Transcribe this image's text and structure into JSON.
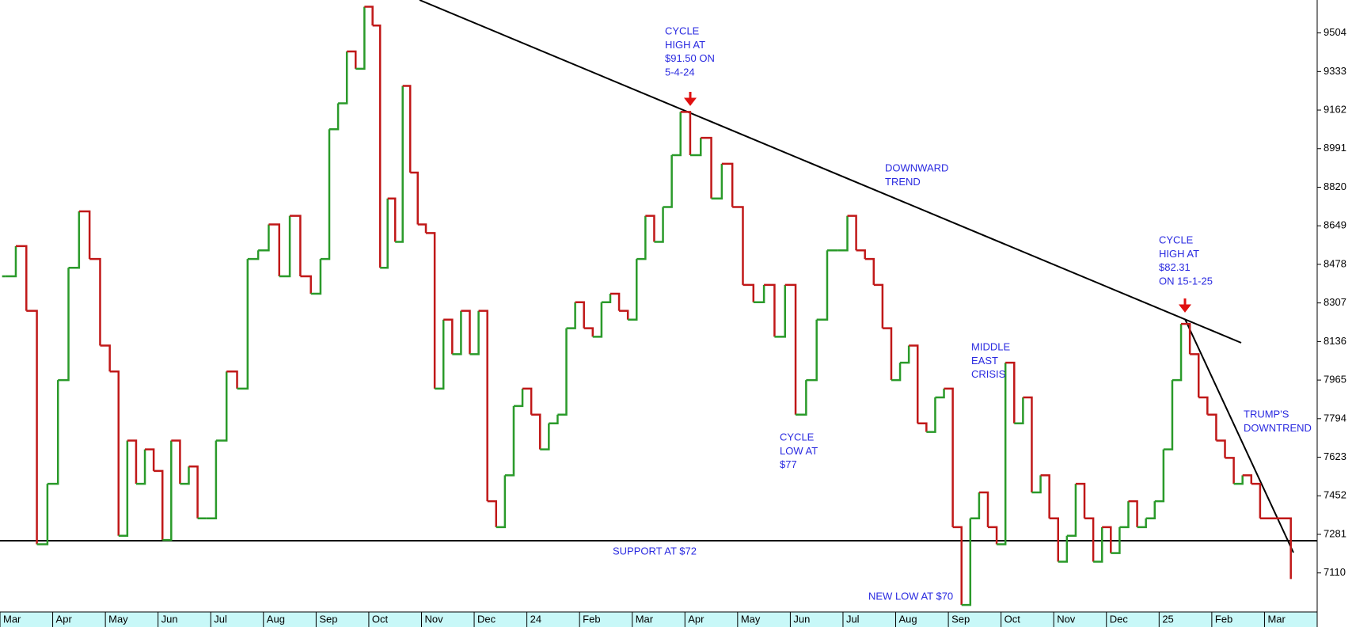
{
  "chart_data": {
    "type": "step",
    "months": [
      "Mar",
      "Apr",
      "May",
      "Jun",
      "Jul",
      "Aug",
      "Sep",
      "Oct",
      "Nov",
      "Dec",
      "24",
      "Feb",
      "Mar",
      "Apr",
      "May",
      "Jun",
      "Jul",
      "Aug",
      "Sep",
      "Oct",
      "Nov",
      "Dec",
      "25",
      "Feb",
      "Mar"
    ],
    "series": [
      {
        "up_color": "#2a9a2a",
        "down_color": "#c01818",
        "x": [
          "Mar",
          "Mar",
          "Mar",
          "Mar",
          "Mar",
          "Apr",
          "Apr",
          "Apr",
          "Apr",
          "Apr",
          "May",
          "May",
          "May",
          "May",
          "May",
          "May",
          "Jun",
          "Jun",
          "Jun",
          "Jun",
          "Jun",
          "Jun",
          "Jul",
          "Jul",
          "Jul",
          "Jul",
          "Jul",
          "Aug",
          "Aug",
          "Aug",
          "Aug",
          "Aug",
          "Sep",
          "Sep",
          "Sep",
          "Sep",
          "Sep",
          "Sep",
          "Oct",
          "Oct",
          "Oct",
          "Oct",
          "Oct",
          "Oct",
          "Oct",
          "Nov",
          "Nov",
          "Nov",
          "Nov",
          "Nov",
          "Nov",
          "Dec",
          "Dec",
          "Dec",
          "Dec",
          "Dec",
          "Dec",
          "24",
          "24",
          "24",
          "24",
          "24",
          "24",
          "Feb",
          "Feb",
          "Feb",
          "Feb",
          "Feb",
          "Feb",
          "Mar",
          "Mar",
          "Mar",
          "Mar",
          "Mar",
          "Mar",
          "Apr",
          "Apr",
          "Apr",
          "Apr",
          "Apr",
          "May",
          "May",
          "May",
          "May",
          "May",
          "Jun",
          "Jun",
          "Jun",
          "Jun",
          "Jun",
          "Jul",
          "Jul",
          "Jul",
          "Jul",
          "Jul",
          "Jul",
          "Aug",
          "Aug",
          "Aug",
          "Aug",
          "Aug",
          "Aug",
          "Sep",
          "Sep",
          "Sep",
          "Sep",
          "Sep",
          "Sep",
          "Oct",
          "Oct",
          "Oct",
          "Oct",
          "Oct",
          "Oct",
          "Nov",
          "Nov",
          "Nov",
          "Nov",
          "Nov",
          "Nov",
          "Dec",
          "Dec",
          "Dec",
          "Dec",
          "Dec",
          "Dec",
          "25",
          "25",
          "25",
          "25",
          "25",
          "25",
          "Feb",
          "Feb",
          "Feb",
          "Feb",
          "Feb",
          "Feb",
          "Mar"
        ],
        "values": [
          8425,
          8559,
          8272,
          7237,
          7505,
          7965,
          8463,
          8713,
          8502,
          8118,
          8003,
          7275,
          7697,
          7505,
          7658,
          7562,
          7256,
          7697,
          7505,
          7582,
          7352,
          7352,
          7697,
          8003,
          7927,
          8502,
          8540,
          8655,
          8425,
          8693,
          8425,
          8348,
          8502,
          9077,
          9192,
          9422,
          9345,
          9620,
          9537,
          8463,
          8770,
          8578,
          9269,
          8885,
          8655,
          8617,
          7927,
          8233,
          8080,
          8272,
          8080,
          8272,
          7428,
          7313,
          7543,
          7850,
          7927,
          7812,
          7658,
          7773,
          7812,
          8195,
          8310,
          8195,
          8157,
          8310,
          8348,
          8272,
          8233,
          8502,
          8693,
          8578,
          8732,
          8962,
          9154,
          8962,
          9039,
          8770,
          8924,
          8732,
          8387,
          8310,
          8387,
          8157,
          8387,
          7812,
          7965,
          8233,
          8540,
          8540,
          8693,
          8540,
          8502,
          8387,
          8195,
          7965,
          8042,
          8118,
          7773,
          7735,
          7888,
          7927,
          7313,
          6968,
          7352,
          7467,
          7313,
          7237,
          8042,
          7773,
          7888,
          7467,
          7543,
          7352,
          7160,
          7275,
          7505,
          7352,
          7160,
          7313,
          7198,
          7313,
          7428,
          7313,
          7352,
          7428,
          7658,
          7965,
          8214,
          8080,
          7888,
          7812,
          7697,
          7620,
          7505,
          7543,
          7505,
          7352,
          7083
        ]
      }
    ],
    "ylim": [
      6937,
      9650
    ],
    "yticks": [
      9504,
      9333,
      9162,
      8991,
      8820,
      8649,
      8478,
      8307,
      8136,
      7965,
      7794,
      7623,
      7452,
      7281,
      7110
    ],
    "annotations": [
      {
        "lines": [
          "CYCLE",
          "HIGH AT",
          "$91.50 ON",
          "5-4-24"
        ]
      },
      {
        "lines": [
          "DOWNWARD",
          "TREND"
        ]
      },
      {
        "lines": [
          "CYCLE",
          "HIGH AT",
          "$82.31",
          "ON 15-1-25"
        ]
      },
      {
        "lines": [
          "MIDDLE",
          "EAST",
          "CRISIS"
        ]
      },
      {
        "lines": [
          "CYCLE",
          "LOW AT",
          "$77"
        ]
      },
      {
        "lines": [
          "TRUMP'S",
          "DOWNTREND"
        ]
      },
      {
        "lines": [
          "SUPPORT AT $72"
        ]
      },
      {
        "lines": [
          "NEW LOW AT $70"
        ]
      }
    ],
    "annotation_color": "#2a2ae0"
  }
}
